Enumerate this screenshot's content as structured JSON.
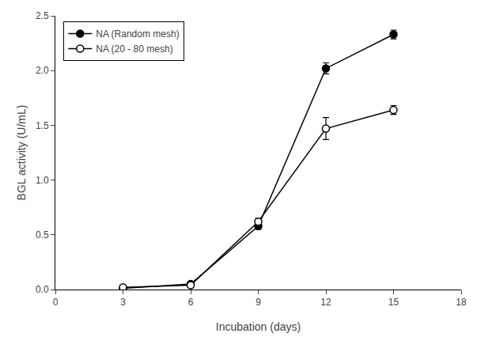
{
  "chart_data": {
    "type": "line",
    "x": [
      3,
      6,
      9,
      12,
      15
    ],
    "series": [
      {
        "name": "NA (Random mesh)",
        "color": "black",
        "marker": "circle",
        "values": [
          0.01,
          0.05,
          0.58,
          2.02,
          2.33
        ],
        "errors": [
          0.005,
          0.01,
          0.03,
          0.05,
          0.04
        ]
      },
      {
        "name": "NA (20 - 80 mesh)",
        "color": "black",
        "marker": "circle-open",
        "values": [
          0.02,
          0.04,
          0.62,
          1.47,
          1.64
        ],
        "errors": [
          0.005,
          0.01,
          0.03,
          0.1,
          0.04
        ]
      }
    ],
    "xlabel": "Incubation (days)",
    "ylabel": "BGL activity (U/mL)",
    "xlim": [
      0,
      18
    ],
    "ylim": [
      0,
      2.5
    ],
    "xticks": [
      0,
      3,
      6,
      9,
      12,
      15,
      18
    ],
    "yticks": [
      {
        "value": 0,
        "label": "0.0"
      },
      0.5,
      {
        "value": 1,
        "label": "1.0"
      },
      1.5,
      {
        "value": 2,
        "label": "2.0"
      },
      2.5
    ],
    "legend": "upper left",
    "grid": false
  }
}
